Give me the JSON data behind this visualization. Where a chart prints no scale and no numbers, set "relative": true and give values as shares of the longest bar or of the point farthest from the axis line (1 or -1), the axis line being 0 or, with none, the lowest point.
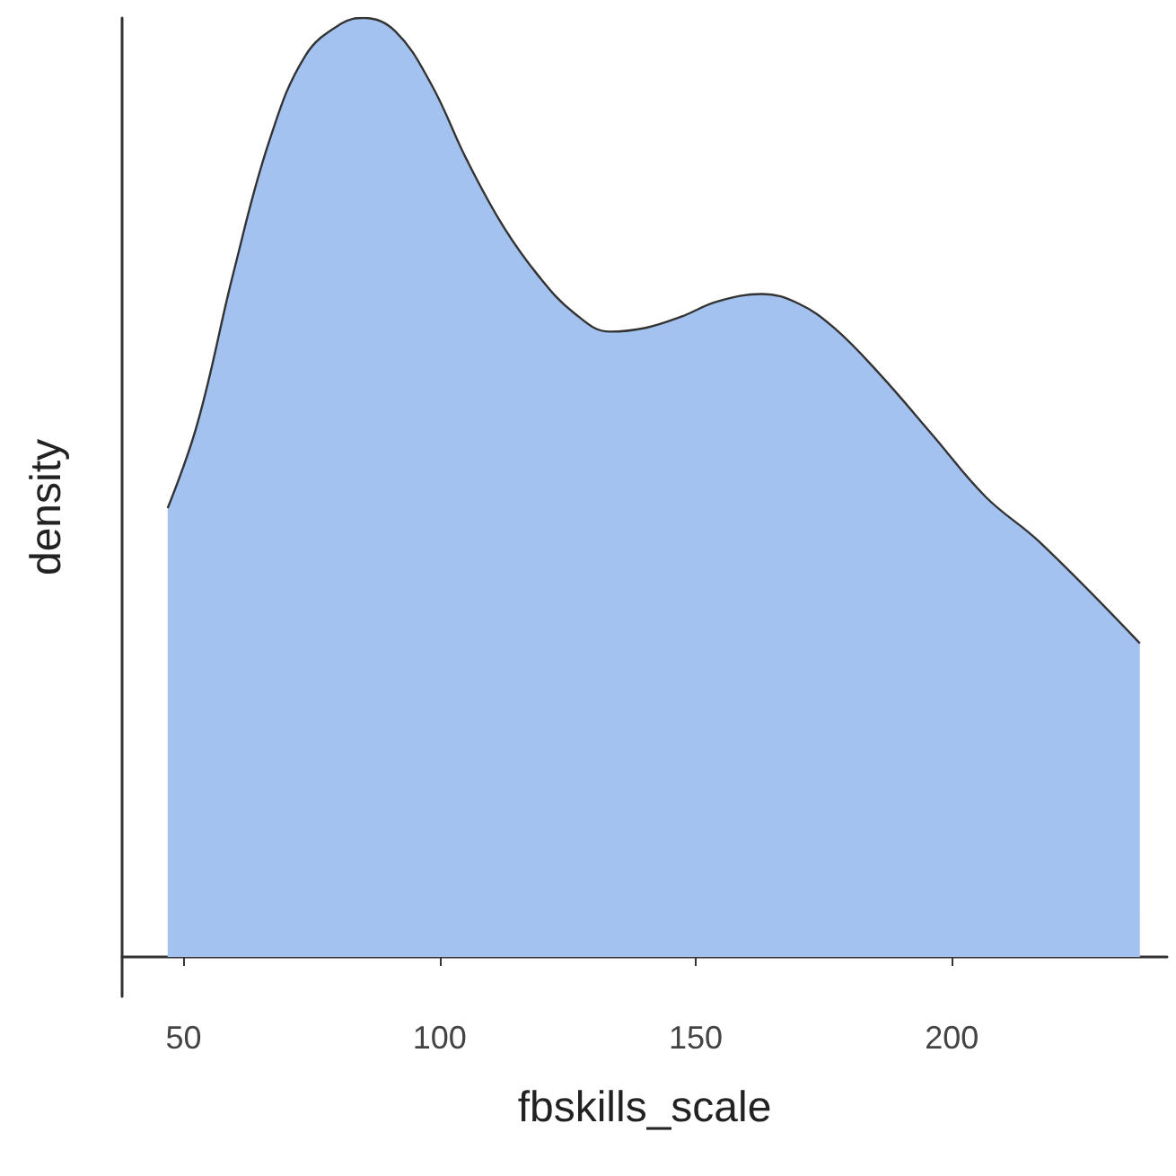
{
  "chart_data": {
    "type": "area",
    "xlabel": "fbskills_scale",
    "ylabel": "density",
    "relative": true,
    "x": [
      46.9,
      52.8,
      59.8,
      66.8,
      73.8,
      80.8,
      85.3,
      91.3,
      98.3,
      105.2,
      112.2,
      119.2,
      126.2,
      133.2,
      140.2,
      147.2,
      154.2,
      163,
      170,
      177,
      185.7,
      196.2,
      206.6,
      217.1,
      236.7
    ],
    "values": [
      0.478,
      0.57,
      0.73,
      0.87,
      0.96,
      0.994,
      1,
      0.986,
      0.93,
      0.85,
      0.78,
      0.726,
      0.686,
      0.666,
      0.67,
      0.682,
      0.698,
      0.706,
      0.696,
      0.67,
      0.622,
      0.556,
      0.49,
      0.442,
      0.334
    ],
    "color": "#a4c2f0",
    "xlim": [
      38,
      242
    ],
    "xticks": [
      50,
      100,
      150,
      200
    ]
  }
}
